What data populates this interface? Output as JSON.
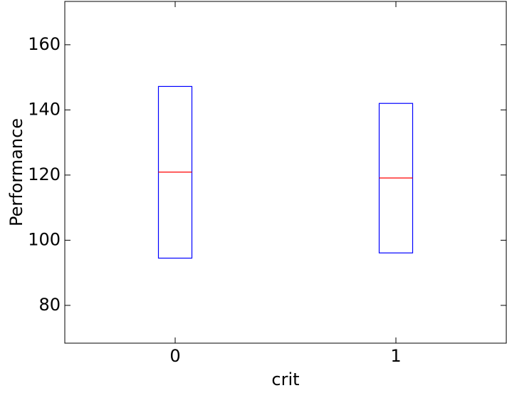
{
  "chart_data": {
    "type": "box",
    "xlabel": "crit",
    "ylabel": "Performance",
    "categories": [
      "0",
      "1"
    ],
    "boxes": [
      {
        "q1": 94.5,
        "median": 120.9,
        "q3": 147.2
      },
      {
        "q1": 96.1,
        "median": 119.1,
        "q3": 142
      }
    ],
    "box_color": "#0000ff",
    "median_color": "#ff0000",
    "ylim": [
      68.4,
      173.3
    ],
    "yticks": [
      80,
      100,
      120,
      140,
      160
    ],
    "grid": false
  }
}
